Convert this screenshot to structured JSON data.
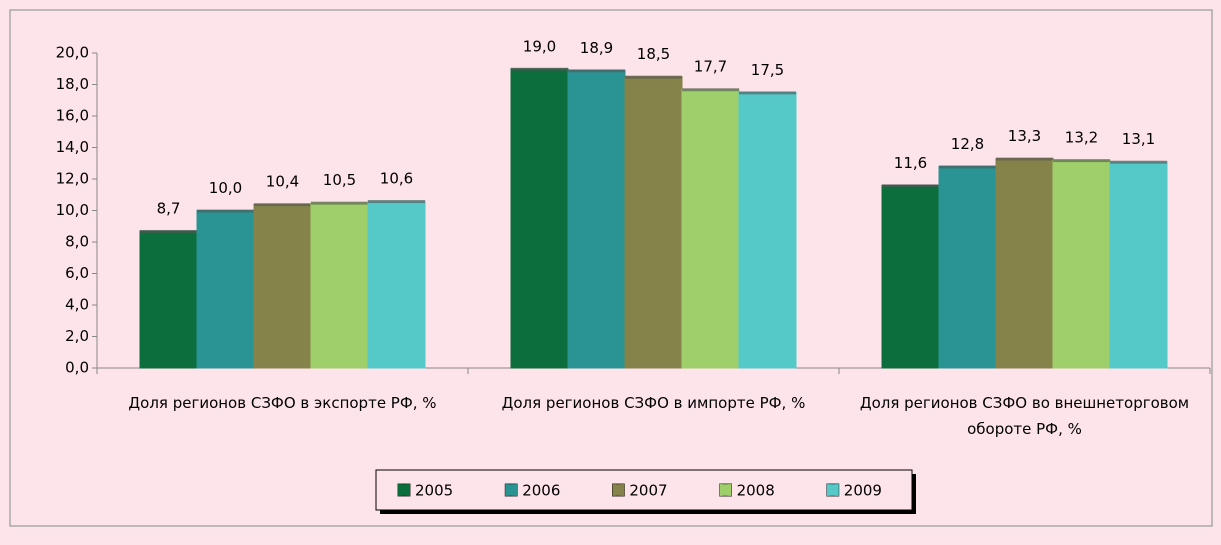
{
  "chart_data": {
    "type": "bar",
    "categories": [
      "Доля регионов СЗФО в экспорте РФ, %",
      "Доля регионов СЗФО в импорте РФ, %",
      "Доля регионов СЗФО во внешнеторговом обороте РФ, %"
    ],
    "series": [
      {
        "name": "2005",
        "color": "#0b6e3c",
        "values": [
          8.7,
          19.0,
          11.6
        ],
        "value_labels": [
          "8,7",
          "19,0",
          "11,6"
        ]
      },
      {
        "name": "2006",
        "color": "#2a9494",
        "values": [
          10.0,
          18.9,
          12.8
        ],
        "value_labels": [
          "10,0",
          "18,9",
          "12,8"
        ]
      },
      {
        "name": "2007",
        "color": "#85834a",
        "values": [
          10.4,
          18.5,
          13.3
        ],
        "value_labels": [
          "10,4",
          "18,5",
          "13,3"
        ]
      },
      {
        "name": "2008",
        "color": "#9fcf6a",
        "values": [
          10.5,
          17.7,
          13.2
        ],
        "value_labels": [
          "10,5",
          "17,7",
          "13,2"
        ]
      },
      {
        "name": "2009",
        "color": "#55c8c8",
        "values": [
          10.6,
          17.5,
          13.1
        ],
        "value_labels": [
          "10,6",
          "17,5",
          "13,1"
        ]
      }
    ],
    "ylim": [
      0,
      20
    ],
    "yticks": [
      {
        "value": 0,
        "label": "0,0"
      },
      {
        "value": 2,
        "label": "2,0"
      },
      {
        "value": 4,
        "label": "4,0"
      },
      {
        "value": 6,
        "label": "6,0"
      },
      {
        "value": 8,
        "label": "8,0"
      },
      {
        "value": 10,
        "label": "10,0"
      },
      {
        "value": 12,
        "label": "12,0"
      },
      {
        "value": 14,
        "label": "14,0"
      },
      {
        "value": 16,
        "label": "16,0"
      },
      {
        "value": 18,
        "label": "18,0"
      },
      {
        "value": 20,
        "label": "20,0"
      }
    ],
    "legend": "bottom"
  }
}
